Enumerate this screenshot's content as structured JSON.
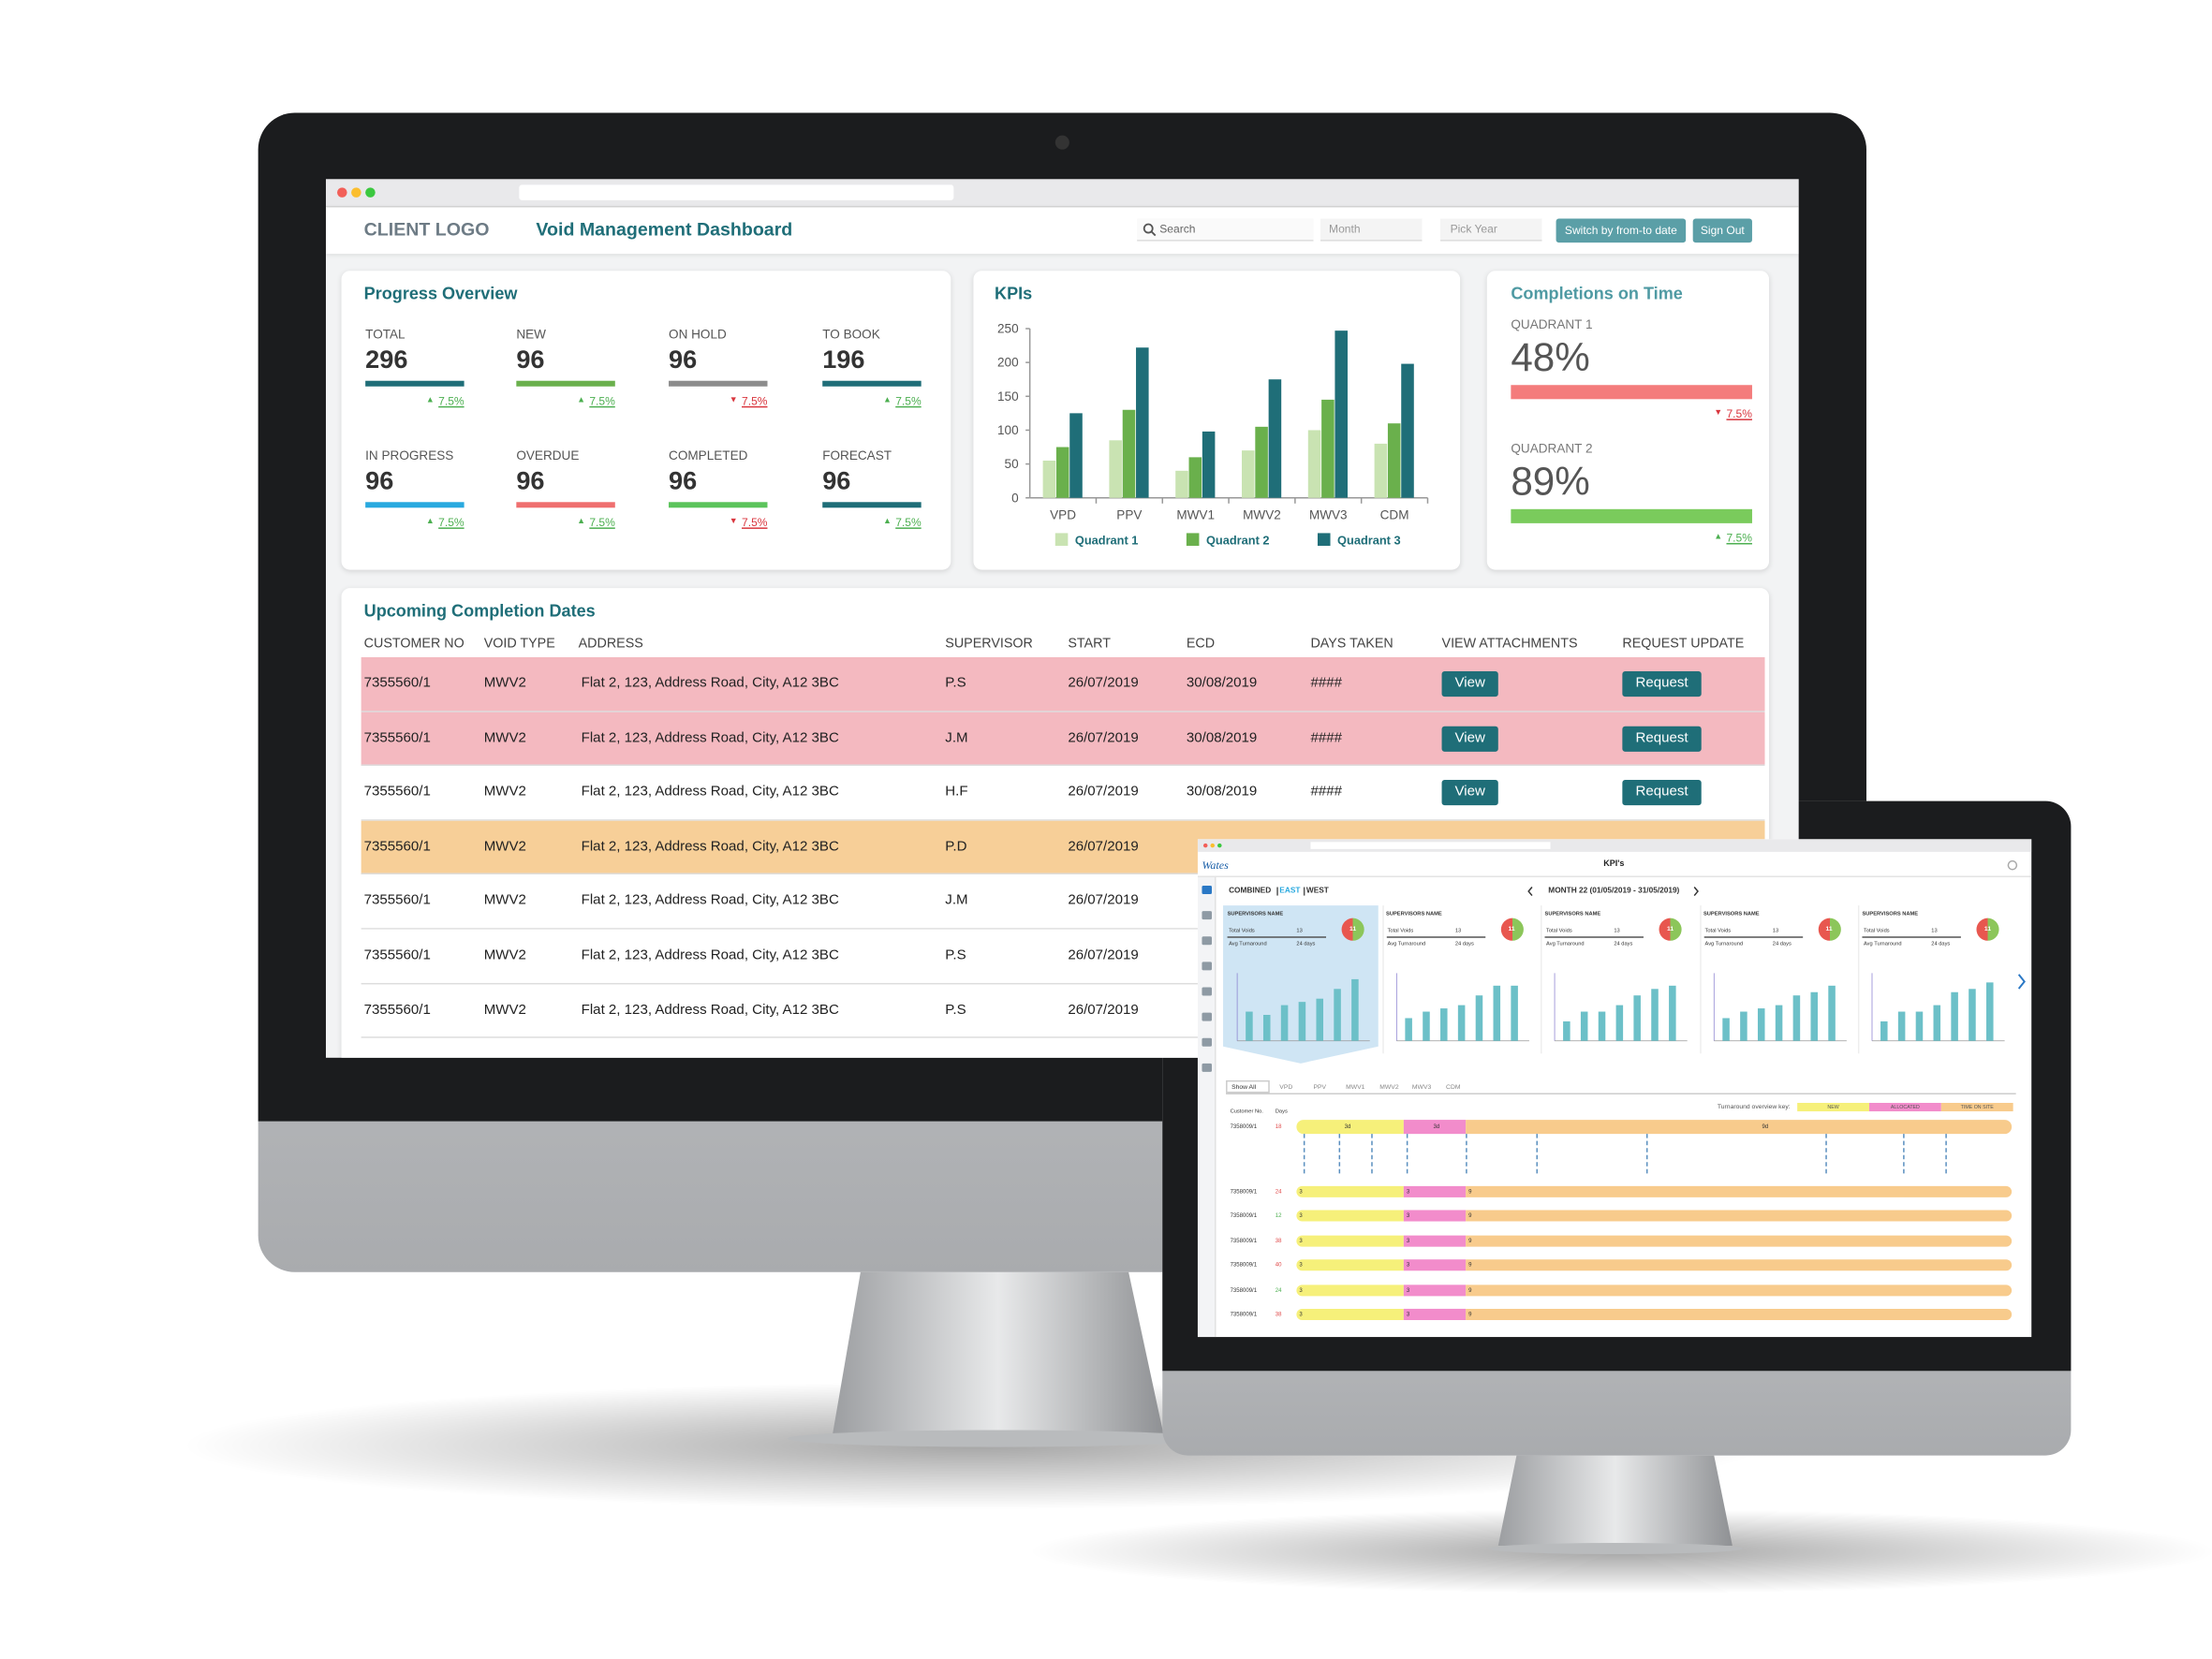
{
  "header": {
    "logo": "CLIENT LOGO",
    "title": "Void Management Dashboard",
    "search": "Search",
    "month": "Month",
    "year": "Pick Year",
    "switch_button": "Switch by from-to date",
    "sign_out": "Sign Out"
  },
  "progress": {
    "title": "Progress Overview",
    "items": [
      {
        "label": "TOTAL",
        "value": 296,
        "change": "7.5%",
        "trend": "up",
        "color": "#1f6e78"
      },
      {
        "label": "NEW",
        "value": 96,
        "change": "7.5%",
        "trend": "up",
        "color": "#6ab04c"
      },
      {
        "label": "ON HOLD",
        "value": 96,
        "change": "7.5%",
        "trend": "down",
        "color": "#8c8c8c"
      },
      {
        "label": "TO BOOK",
        "value": 196,
        "change": "7.5%",
        "trend": "up",
        "color": "#1f6e78"
      },
      {
        "label": "IN PROGRESS",
        "value": 96,
        "change": "7.5%",
        "trend": "up",
        "color": "#29a9df"
      },
      {
        "label": "OVERDUE",
        "value": 96,
        "change": "7.5%",
        "trend": "up",
        "color": "#ef6f6f"
      },
      {
        "label": "COMPLETED",
        "value": 96,
        "change": "7.5%",
        "trend": "down",
        "color": "#5cc45c"
      },
      {
        "label": "FORECAST",
        "value": 96,
        "change": "7.5%",
        "trend": "up",
        "color": "#1f6e78"
      }
    ]
  },
  "chart_data": {
    "type": "bar",
    "title": "KPIs",
    "categories": [
      "VPD",
      "PPV",
      "MWV1",
      "MWV2",
      "MWV3",
      "CDM"
    ],
    "series": [
      {
        "name": "Quadrant 1",
        "color": "#c9e3b2",
        "values": [
          55,
          85,
          40,
          70,
          100,
          80
        ]
      },
      {
        "name": "Quadrant 2",
        "color": "#6ab04c",
        "values": [
          75,
          130,
          60,
          105,
          145,
          110
        ]
      },
      {
        "name": "Quadrant 3",
        "color": "#1f6e78",
        "values": [
          125,
          222,
          98,
          175,
          247,
          198
        ]
      }
    ],
    "ylim": [
      0,
      250
    ],
    "yticks": [
      0,
      50,
      100,
      150,
      200,
      250
    ]
  },
  "completions": {
    "title": "Completions on Time",
    "quadrants": [
      {
        "label": "QUADRANT 1",
        "value": "48%",
        "change": "7.5%",
        "trend": "down",
        "color": "#f47c7c"
      },
      {
        "label": "QUADRANT 2",
        "value": "89%",
        "change": "7.5%",
        "trend": "up",
        "color": "#7acb5c"
      }
    ]
  },
  "table": {
    "title": "Upcoming Completion Dates",
    "columns": [
      "CUSTOMER NO",
      "VOID TYPE",
      "ADDRESS",
      "SUPERVISOR",
      "START",
      "ECD",
      "DAYS TAKEN",
      "VIEW ATTACHMENTS",
      "REQUEST UPDATE"
    ],
    "rows": [
      {
        "highlight": "#f4b9c0",
        "cells": [
          "7355560/1",
          "MWV2",
          "Flat 2, 123, Address Road, City, A12 3BC",
          "P.S",
          "26/07/2019",
          "30/08/2019",
          "####",
          "View",
          "Request"
        ]
      },
      {
        "highlight": "#f4b9c0",
        "cells": [
          "7355560/1",
          "MWV2",
          "Flat 2, 123, Address Road, City, A12 3BC",
          "J.M",
          "26/07/2019",
          "30/08/2019",
          "####",
          "View",
          "Request"
        ]
      },
      {
        "highlight": "#ffffff",
        "cells": [
          "7355560/1",
          "MWV2",
          "Flat 2, 123, Address Road, City, A12 3BC",
          "H.F",
          "26/07/2019",
          "30/08/2019",
          "####",
          "View",
          "Request"
        ]
      },
      {
        "highlight": "#f7cf98",
        "cells": [
          "7355560/1",
          "MWV2",
          "Flat 2, 123, Address Road, City, A12 3BC",
          "P.D",
          "26/07/2019"
        ]
      },
      {
        "highlight": "#ffffff",
        "cells": [
          "7355560/1",
          "MWV2",
          "Flat 2, 123, Address Road, City, A12 3BC",
          "J.M",
          "26/07/2019"
        ]
      },
      {
        "highlight": "#ffffff",
        "cells": [
          "7355560/1",
          "MWV2",
          "Flat 2, 123, Address Road, City, A12 3BC",
          "P.S",
          "26/07/2019"
        ]
      },
      {
        "highlight": "#ffffff",
        "cells": [
          "7355560/1",
          "MWV2",
          "Flat 2, 123, Address Road, City, A12 3BC",
          "P.S",
          "26/07/2019"
        ]
      }
    ]
  },
  "small_screen": {
    "logo": "Wates",
    "title": "KPI's",
    "filters": [
      "COMBINED",
      "EAST",
      "WEST"
    ],
    "month": "MONTH 22 (01/05/2019 - 31/05/2019)",
    "panels": [
      {
        "name": "SUPERVISORS NAME",
        "total_label": "Total Voids",
        "total": 13,
        "avg_label": "Avg Turnaround",
        "avg": "24 days",
        "score": 11,
        "ylim": [
          0,
          100
        ],
        "bars": [
          45,
          40,
          55,
          60,
          65,
          80,
          95
        ]
      },
      {
        "name": "SUPERVISORS NAME",
        "total_label": "Total Voids",
        "total": 13,
        "avg_label": "Avg Turnaround",
        "avg": "24 days",
        "score": 11,
        "ylim": [
          0,
          100
        ],
        "bars": [
          35,
          45,
          50,
          55,
          70,
          85,
          85
        ]
      },
      {
        "name": "SUPERVISORS NAME",
        "total_label": "Total Voids",
        "total": 13,
        "avg_label": "Avg Turnaround",
        "avg": "24 days",
        "score": 11,
        "ylim": [
          0,
          100
        ],
        "bars": [
          30,
          45,
          45,
          55,
          70,
          80,
          85
        ]
      },
      {
        "name": "SUPERVISORS NAME",
        "total_label": "Total Voids",
        "total": 13,
        "avg_label": "Avg Turnaround",
        "avg": "24 days",
        "score": 11,
        "ylim": [
          0,
          100
        ],
        "bars": [
          35,
          45,
          50,
          55,
          70,
          75,
          85
        ]
      },
      {
        "name": "SUPERVISORS NAME",
        "total_label": "Total Voids",
        "total": 13,
        "avg_label": "Avg Turnaround",
        "avg": "24 days",
        "score": 11,
        "ylim": [
          0,
          100
        ],
        "bars": [
          30,
          45,
          45,
          55,
          75,
          80,
          90
        ]
      }
    ],
    "tabs": [
      "Show All",
      "VPD",
      "PPV",
      "MWV1",
      "MWV2",
      "MWV3",
      "CDM"
    ],
    "key": {
      "title": "Turnaround overview key:",
      "items": [
        {
          "label": "NEW",
          "color": "#f6f07a"
        },
        {
          "label": "ALLOCATED",
          "color": "#f28ccb"
        },
        {
          "label": "TIME ON SITE",
          "color": "#f8cb8c"
        }
      ]
    },
    "list_headers": [
      "Customer No.",
      "Days"
    ],
    "rows": [
      {
        "customer": "7358009/1",
        "days": 18,
        "days_color": "#e04848",
        "segments": [
          "3d",
          "3d",
          "9d"
        ]
      },
      {
        "customer": "7358009/1",
        "days": 24,
        "days_color": "#e04848",
        "segments": [
          "3",
          "3",
          "9"
        ]
      },
      {
        "customer": "7358009/1",
        "days": 12,
        "days_color": "#4caf50",
        "segments": [
          "3",
          "3",
          "9"
        ]
      },
      {
        "customer": "7358009/1",
        "days": 38,
        "days_color": "#e04848",
        "segments": [
          "3",
          "3",
          "9"
        ]
      },
      {
        "customer": "7358009/1",
        "days": 40,
        "days_color": "#e04848",
        "segments": [
          "3",
          "3",
          "9"
        ]
      },
      {
        "customer": "7358009/1",
        "days": 24,
        "days_color": "#4caf50",
        "segments": [
          "3",
          "3",
          "9"
        ]
      },
      {
        "customer": "7358009/1",
        "days": 38,
        "days_color": "#e04848",
        "segments": [
          "3",
          "3",
          "9"
        ]
      }
    ]
  }
}
